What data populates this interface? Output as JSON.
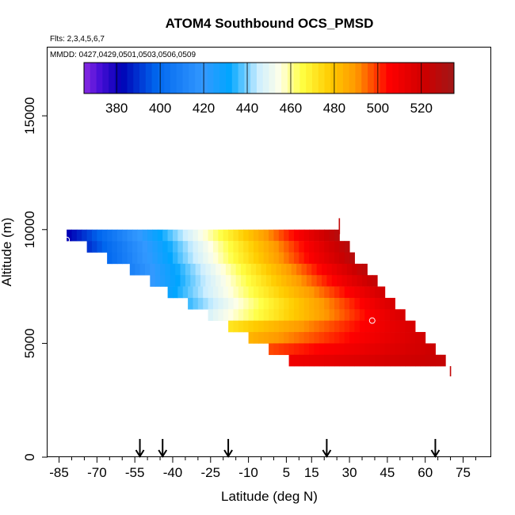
{
  "chart_data": {
    "type": "heatmap",
    "title": "ATOM4 Southbound OCS_PMSD",
    "flights_label": "Flts: 2,3,4,5,6,7",
    "dates_label": "MMDD: 0427,0429,0501,0503,0506,0509",
    "xlabel": "Latitude (deg N)",
    "ylabel": "Altitude (m)",
    "xlim": [
      -88,
      83
    ],
    "ylim": [
      0,
      18000
    ],
    "x_ticks": [
      -85,
      -70,
      -55,
      -40,
      -25,
      -10,
      5,
      15,
      30,
      45,
      60,
      75
    ],
    "x_tick_labels": [
      "-85",
      "-70",
      "-55",
      "-40",
      "-25",
      "-10",
      "5",
      "15",
      "30",
      "45",
      "60",
      "75"
    ],
    "x_minor_ticks": [
      -80,
      -75,
      -65,
      -60,
      -50,
      -45,
      -35,
      -30,
      -20,
      -15,
      -5,
      0,
      10,
      20,
      25,
      35,
      40,
      50,
      55,
      65,
      70,
      80
    ],
    "y_ticks": [
      0,
      5000,
      10000,
      15000
    ],
    "y_tick_labels": [
      "0",
      "5000",
      "10000",
      "15000"
    ],
    "colorbar": {
      "min": 365,
      "max": 535,
      "ticks": [
        380,
        400,
        420,
        440,
        460,
        480,
        500,
        520
      ],
      "tick_labels": [
        "380",
        "400",
        "420",
        "440",
        "460",
        "480",
        "500",
        "520"
      ],
      "stops": [
        {
          "v": 365,
          "c": "#8a2be2"
        },
        {
          "v": 372,
          "c": "#4b0fd8"
        },
        {
          "v": 382,
          "c": "#0000b4"
        },
        {
          "v": 398,
          "c": "#0066ee"
        },
        {
          "v": 420,
          "c": "#3399ff"
        },
        {
          "v": 432,
          "c": "#00a5ff"
        },
        {
          "v": 445,
          "c": "#cceeff"
        },
        {
          "v": 455,
          "c": "#ffffe8"
        },
        {
          "v": 465,
          "c": "#ffff44"
        },
        {
          "v": 478,
          "c": "#ffcc00"
        },
        {
          "v": 490,
          "c": "#ff9900"
        },
        {
          "v": 505,
          "c": "#ff0000"
        },
        {
          "v": 522,
          "c": "#cc0000"
        },
        {
          "v": 535,
          "c": "#a01818"
        }
      ]
    },
    "value_grid": {
      "lat_start": -82,
      "lat_step": 2,
      "rows": [
        {
          "alt_top": 10000,
          "alt_bottom": 9500,
          "lat_min": -82,
          "lat_max": 26,
          "v_west": 382,
          "v_east": 528
        },
        {
          "alt_top": 9500,
          "alt_bottom": 9000,
          "lat_min": -74,
          "lat_max": 30,
          "v_west": 390,
          "v_east": 528
        },
        {
          "alt_top": 9000,
          "alt_bottom": 8500,
          "lat_min": -66,
          "lat_max": 32,
          "v_west": 400,
          "v_east": 528
        },
        {
          "alt_top": 8500,
          "alt_bottom": 8000,
          "lat_min": -57,
          "lat_max": 36,
          "v_west": 410,
          "v_east": 526
        },
        {
          "alt_top": 8000,
          "alt_bottom": 7500,
          "lat_min": -49,
          "lat_max": 40,
          "v_west": 420,
          "v_east": 524
        },
        {
          "alt_top": 7500,
          "alt_bottom": 7000,
          "lat_min": -42,
          "lat_max": 44,
          "v_west": 430,
          "v_east": 520
        },
        {
          "alt_top": 7000,
          "alt_bottom": 6500,
          "lat_min": -34,
          "lat_max": 48,
          "v_west": 436,
          "v_east": 518
        },
        {
          "alt_top": 6500,
          "alt_bottom": 6000,
          "lat_min": -26,
          "lat_max": 52,
          "v_west": 448,
          "v_east": 518
        },
        {
          "alt_top": 6000,
          "alt_bottom": 5500,
          "lat_min": -18,
          "lat_max": 56,
          "v_west": 472,
          "v_east": 518
        },
        {
          "alt_top": 5500,
          "alt_bottom": 5000,
          "lat_min": -10,
          "lat_max": 60,
          "v_west": 484,
          "v_east": 520
        },
        {
          "alt_top": 5000,
          "alt_bottom": 4500,
          "lat_min": -2,
          "lat_max": 64,
          "v_west": 498,
          "v_east": 522
        },
        {
          "alt_top": 4500,
          "alt_bottom": 4000,
          "lat_min": 6,
          "lat_max": 68,
          "v_west": 510,
          "v_east": 524
        }
      ],
      "isolated_points": [
        {
          "lat": 26,
          "alt_min": 9800,
          "alt_max": 10500,
          "value": 525
        },
        {
          "lat": 70,
          "alt_min": 3550,
          "alt_max": 4000,
          "value": 525
        }
      ]
    },
    "circle_markers": [
      {
        "lat": -82,
        "alt": 9550
      },
      {
        "lat": 39,
        "alt": 6000
      }
    ],
    "arrows": {
      "lat": [
        -53,
        -44,
        -18,
        21,
        64
      ],
      "alt_top": 800
    }
  }
}
